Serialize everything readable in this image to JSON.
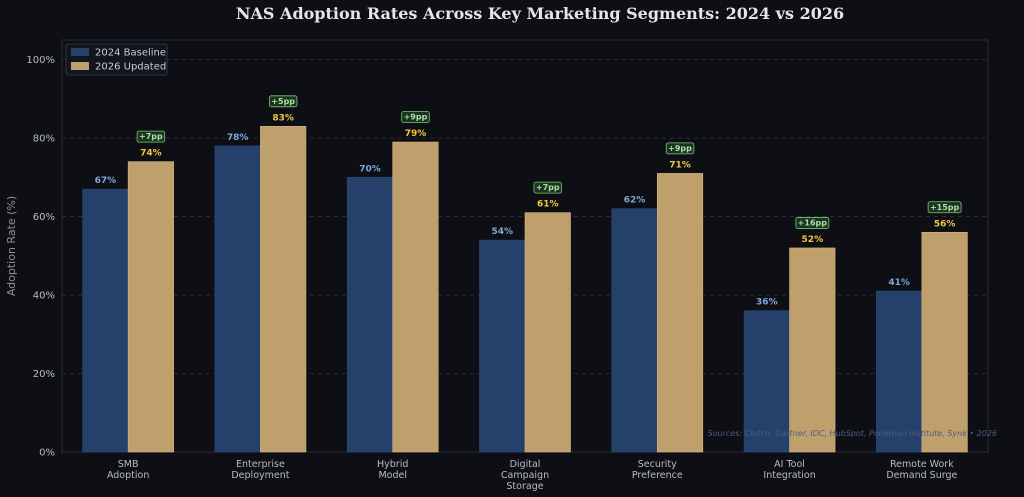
{
  "chart_data": {
    "type": "bar",
    "title": "NAS Adoption Rates Across Key Marketing Segments: 2024 vs 2026",
    "xlabel": "",
    "ylabel": "Adoption Rate (%)",
    "ylim": [
      0,
      105
    ],
    "yticks": [
      0,
      20,
      40,
      60,
      80,
      100
    ],
    "ytick_labels": [
      "0%",
      "20%",
      "40%",
      "60%",
      "80%",
      "100%"
    ],
    "grid": "horizontal dashed",
    "legend_position": "top-left",
    "categories": [
      [
        "SMB",
        "Adoption"
      ],
      [
        "Enterprise",
        "Deployment"
      ],
      [
        "Hybrid",
        "Model"
      ],
      [
        "Digital",
        "Campaign",
        "Storage"
      ],
      [
        "Security",
        "Preference"
      ],
      [
        "AI Tool",
        "Integration"
      ],
      [
        "Remote Work",
        "Demand Surge"
      ]
    ],
    "series": [
      {
        "name": "2024 Baseline",
        "color": "#24406b",
        "label_color": "#7fa6d8",
        "values": [
          67,
          78,
          70,
          54,
          62,
          36,
          41
        ]
      },
      {
        "name": "2026 Updated",
        "color": "#bf9f6b",
        "label_color": "#f2c542",
        "values": [
          74,
          83,
          79,
          61,
          71,
          52,
          56
        ]
      }
    ],
    "deltas": [
      "+7pp",
      "+5pp",
      "+9pp",
      "+7pp",
      "+9pp",
      "+16pp",
      "+15pp"
    ],
    "value_suffix": "%",
    "source_note": "Sources: Clutch, Gartner, IDC, HubSpot, Ponemon Institute, Synk • 2026"
  },
  "colors": {
    "background": "#0d0f14",
    "plot_border": "#2a2d36",
    "grid": "#2e3240",
    "delta_box_fill": "#1c3322",
    "delta_box_stroke": "#7fc47a"
  }
}
